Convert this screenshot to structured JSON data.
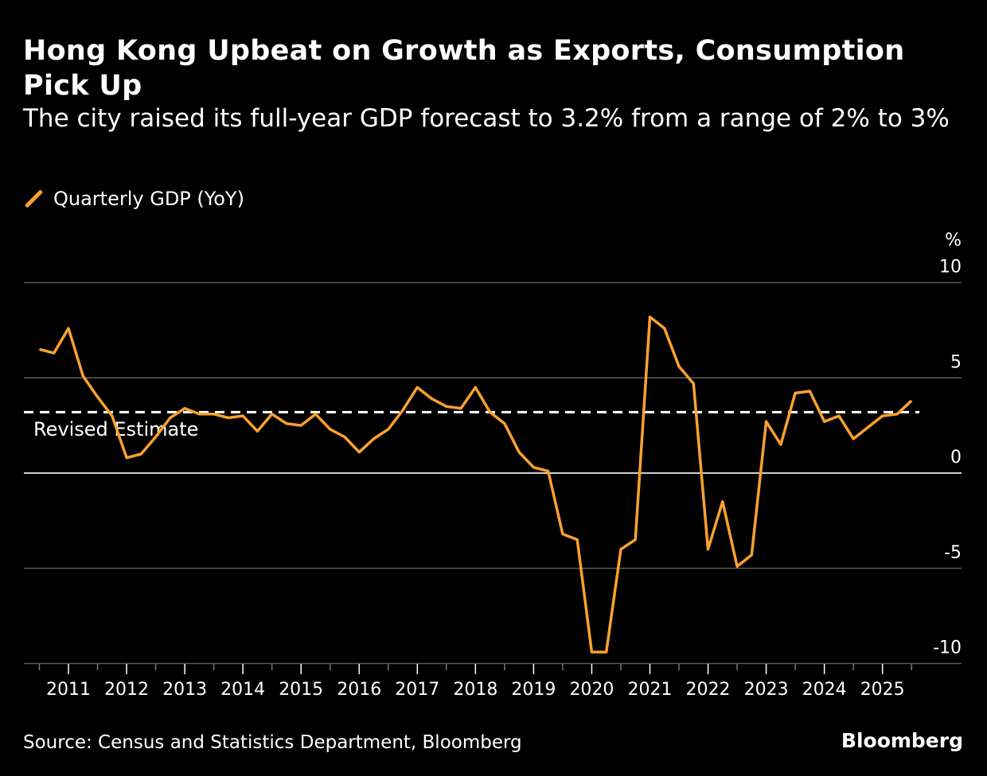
{
  "title": "Hong Kong Upbeat on Growth as Exports, Consumption Pick Up",
  "subtitle": "The city raised its full-year GDP forecast to 3.2% from a range of 2% to 3%",
  "source": "Source: Census and Statistics Department, Bloomberg",
  "logo": "Bloomberg",
  "colors": {
    "series": "#f9a131",
    "background": "#000000",
    "reference": "#ffffff"
  },
  "chart_data": {
    "type": "line",
    "title": "Hong Kong Upbeat on Growth as Exports, Consumption Pick Up",
    "ylabel": "%",
    "ylim": [
      -10,
      10
    ],
    "yticks": [
      10,
      5,
      0,
      -5,
      -10
    ],
    "xlim": [
      "2010-Q3",
      "2025-Q3"
    ],
    "xticks": [
      "2011",
      "2012",
      "2013",
      "2014",
      "2015",
      "2016",
      "2017",
      "2018",
      "2019",
      "2020",
      "2021",
      "2022",
      "2023",
      "2024",
      "2025"
    ],
    "grid": true,
    "legend_position": "top-left",
    "series": [
      {
        "name": "Quarterly GDP (YoY)",
        "x": [
          "2010-Q3",
          "2010-Q4",
          "2011-Q1",
          "2011-Q2",
          "2011-Q3",
          "2011-Q4",
          "2012-Q1",
          "2012-Q2",
          "2012-Q3",
          "2012-Q4",
          "2013-Q1",
          "2013-Q2",
          "2013-Q3",
          "2013-Q4",
          "2014-Q1",
          "2014-Q2",
          "2014-Q3",
          "2014-Q4",
          "2015-Q1",
          "2015-Q2",
          "2015-Q3",
          "2015-Q4",
          "2016-Q1",
          "2016-Q2",
          "2016-Q3",
          "2016-Q4",
          "2017-Q1",
          "2017-Q2",
          "2017-Q3",
          "2017-Q4",
          "2018-Q1",
          "2018-Q2",
          "2018-Q3",
          "2018-Q4",
          "2019-Q1",
          "2019-Q2",
          "2019-Q3",
          "2019-Q4",
          "2020-Q1",
          "2020-Q2",
          "2020-Q3",
          "2020-Q4",
          "2021-Q1",
          "2021-Q2",
          "2021-Q3",
          "2021-Q4",
          "2022-Q1",
          "2022-Q2",
          "2022-Q3",
          "2022-Q4",
          "2023-Q1",
          "2023-Q2",
          "2023-Q3",
          "2023-Q4",
          "2024-Q1",
          "2024-Q2",
          "2024-Q3",
          "2024-Q4",
          "2025-Q1",
          "2025-Q2",
          "2025-Q3"
        ],
        "values": [
          6.5,
          6.3,
          7.6,
          5.1,
          4.0,
          3.0,
          0.8,
          1.0,
          1.9,
          2.9,
          3.4,
          3.1,
          3.1,
          2.9,
          3.0,
          2.2,
          3.1,
          2.6,
          2.5,
          3.1,
          2.3,
          1.9,
          1.1,
          1.8,
          2.3,
          3.3,
          4.5,
          3.9,
          3.5,
          3.4,
          4.5,
          3.2,
          2.6,
          1.1,
          0.3,
          0.1,
          -3.2,
          -3.5,
          -9.4,
          -9.4,
          -4.0,
          -3.5,
          8.2,
          7.6,
          5.6,
          4.7,
          -4.0,
          -1.5,
          -4.9,
          -4.3,
          2.7,
          1.5,
          4.2,
          4.3,
          2.7,
          3.0,
          1.8,
          2.4,
          3.0,
          3.1,
          3.8
        ]
      }
    ],
    "annotations": [
      {
        "type": "horizontal-dashed-line",
        "value": 3.2,
        "label": "Revised Estimate"
      }
    ]
  }
}
